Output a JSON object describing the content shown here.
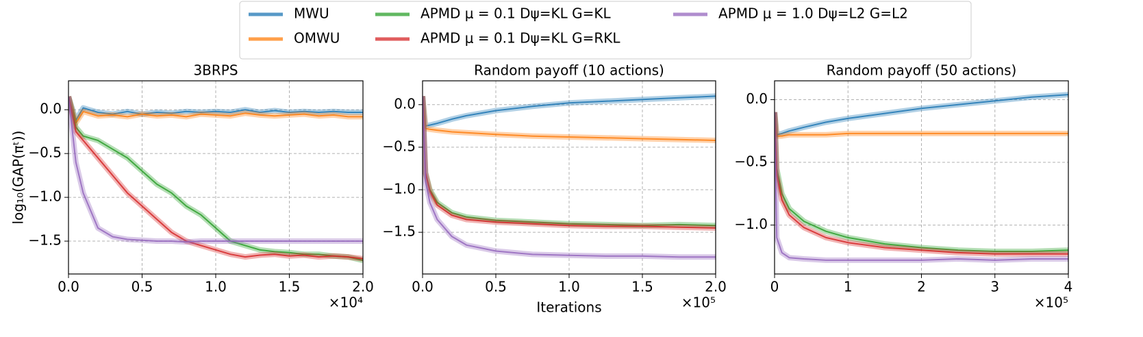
{
  "chart_data": [
    {
      "type": "line",
      "title": "3BRPS",
      "ylabel": "log₁₀(GAP(πᵗ))",
      "legend": "top",
      "grid": true,
      "x": [
        0,
        0.05,
        0.1,
        0.2,
        0.3,
        0.4,
        0.5,
        0.6,
        0.7,
        0.8,
        0.9,
        1.0,
        1.1,
        1.2,
        1.3,
        1.4,
        1.5,
        1.6,
        1.7,
        1.8,
        1.9,
        2.0
      ],
      "x_offset_label": "×10⁴",
      "xlim": [
        0,
        2.0
      ],
      "ylim": [
        -1.875,
        0.33
      ],
      "xticks": [
        {
          "value": 0,
          "label": "0.0"
        },
        {
          "value": 0.5,
          "label": "0.5"
        },
        {
          "value": 1.0,
          "label": "1.0"
        },
        {
          "value": 1.5,
          "label": "1.5"
        },
        {
          "value": 2.0,
          "label": "2.0"
        }
      ],
      "yticks": [
        {
          "value": 0,
          "label": "0.0"
        },
        {
          "value": -0.5,
          "label": "−0.5"
        },
        {
          "value": -1.0,
          "label": "−1.0"
        },
        {
          "value": -1.5,
          "label": "−1.5"
        }
      ],
      "series": [
        {
          "name": "MWU",
          "color": "#1f77b4",
          "values": [
            0.15,
            -0.12,
            0.02,
            -0.03,
            -0.05,
            -0.02,
            -0.05,
            -0.03,
            -0.04,
            -0.02,
            -0.03,
            -0.02,
            -0.03,
            0.0,
            -0.03,
            -0.01,
            -0.03,
            -0.02,
            -0.03,
            -0.02,
            -0.03,
            -0.03
          ]
        },
        {
          "name": "OMWU",
          "color": "#ff7f0e",
          "values": [
            0.15,
            -0.15,
            -0.02,
            -0.07,
            -0.06,
            -0.08,
            -0.05,
            -0.07,
            -0.06,
            -0.08,
            -0.05,
            -0.06,
            -0.07,
            -0.04,
            -0.06,
            -0.07,
            -0.06,
            -0.05,
            -0.07,
            -0.06,
            -0.08,
            -0.08
          ]
        },
        {
          "name": "APMD μ = 0.1 Dψ=KL G=KL",
          "color": "#2ca02c",
          "values": [
            0.15,
            -0.2,
            -0.3,
            -0.35,
            -0.45,
            -0.55,
            -0.7,
            -0.85,
            -0.95,
            -1.1,
            -1.2,
            -1.35,
            -1.5,
            -1.55,
            -1.6,
            -1.62,
            -1.63,
            -1.65,
            -1.65,
            -1.67,
            -1.68,
            -1.72
          ]
        },
        {
          "name": "APMD μ = 0.1 Dψ=KL G=RKL",
          "color": "#d62728",
          "values": [
            0.15,
            -0.25,
            -0.35,
            -0.55,
            -0.75,
            -0.95,
            -1.1,
            -1.25,
            -1.4,
            -1.5,
            -1.55,
            -1.6,
            -1.65,
            -1.68,
            -1.66,
            -1.65,
            -1.67,
            -1.66,
            -1.68,
            -1.67,
            -1.68,
            -1.7
          ]
        },
        {
          "name": "APMD μ = 1.0 Dψ=L2 G=L2",
          "color": "#9467bd",
          "values": [
            0.15,
            -0.6,
            -0.95,
            -1.35,
            -1.45,
            -1.48,
            -1.49,
            -1.5,
            -1.5,
            -1.51,
            -1.5,
            -1.5,
            -1.5,
            -1.5,
            -1.5,
            -1.5,
            -1.5,
            -1.5,
            -1.5,
            -1.5,
            -1.5,
            -1.5
          ]
        }
      ]
    },
    {
      "type": "line",
      "title": "Random payoff (10 actions)",
      "xlabel": "Iterations",
      "grid": true,
      "x": [
        0,
        0.02,
        0.05,
        0.1,
        0.2,
        0.3,
        0.5,
        0.75,
        1.0,
        1.25,
        1.5,
        1.75,
        2.0
      ],
      "x_offset_label": "×10⁵",
      "xlim": [
        0,
        2.0
      ],
      "ylim": [
        -1.99,
        0.28
      ],
      "xticks": [
        {
          "value": 0,
          "label": "0.0"
        },
        {
          "value": 0.5,
          "label": "0.5"
        },
        {
          "value": 1.0,
          "label": "1.0"
        },
        {
          "value": 1.5,
          "label": "1.5"
        },
        {
          "value": 2.0,
          "label": "2.0"
        }
      ],
      "yticks": [
        {
          "value": 0,
          "label": "0.0"
        },
        {
          "value": -0.5,
          "label": "−0.5"
        },
        {
          "value": -1.0,
          "label": "−1.0"
        },
        {
          "value": -1.5,
          "label": "−1.5"
        }
      ],
      "series": [
        {
          "color": "#1f77b4",
          "values": [
            0.1,
            -0.25,
            -0.24,
            -0.22,
            -0.17,
            -0.13,
            -0.07,
            -0.02,
            0.02,
            0.04,
            0.06,
            0.08,
            0.1
          ]
        },
        {
          "color": "#ff7f0e",
          "values": [
            0.1,
            -0.28,
            -0.29,
            -0.3,
            -0.32,
            -0.33,
            -0.35,
            -0.37,
            -0.38,
            -0.39,
            -0.4,
            -0.41,
            -0.42
          ]
        },
        {
          "color": "#2ca02c",
          "values": [
            0.1,
            -0.8,
            -1.0,
            -1.15,
            -1.27,
            -1.32,
            -1.36,
            -1.38,
            -1.4,
            -1.41,
            -1.42,
            -1.41,
            -1.42
          ]
        },
        {
          "color": "#d62728",
          "values": [
            0.1,
            -0.8,
            -1.02,
            -1.18,
            -1.3,
            -1.35,
            -1.38,
            -1.4,
            -1.42,
            -1.43,
            -1.43,
            -1.44,
            -1.45
          ]
        },
        {
          "color": "#9467bd",
          "values": [
            0.1,
            -0.9,
            -1.15,
            -1.35,
            -1.55,
            -1.65,
            -1.72,
            -1.76,
            -1.77,
            -1.78,
            -1.78,
            -1.79,
            -1.79
          ]
        }
      ]
    },
    {
      "type": "line",
      "title": "Random payoff (50 actions)",
      "grid": true,
      "x": [
        0,
        0.03,
        0.1,
        0.2,
        0.4,
        0.7,
        1.0,
        1.5,
        2.0,
        2.5,
        3.0,
        3.5,
        4.0
      ],
      "x_offset_label": "×10⁵",
      "xlim": [
        0,
        4
      ],
      "ylim": [
        -1.39,
        0.15
      ],
      "xticks": [
        0,
        1,
        2,
        3,
        4
      ],
      "yticks": [
        {
          "value": 0,
          "label": "0.0"
        },
        {
          "value": -0.5,
          "label": "−0.5"
        },
        {
          "value": -1.0,
          "label": "−1.0"
        }
      ],
      "series": [
        {
          "color": "#1f77b4",
          "values": [
            -0.1,
            -0.28,
            -0.27,
            -0.25,
            -0.22,
            -0.18,
            -0.15,
            -0.11,
            -0.07,
            -0.04,
            -0.01,
            0.02,
            0.04
          ]
        },
        {
          "color": "#ff7f0e",
          "values": [
            -0.1,
            -0.29,
            -0.29,
            -0.28,
            -0.28,
            -0.28,
            -0.27,
            -0.27,
            -0.27,
            -0.27,
            -0.27,
            -0.27,
            -0.27
          ]
        },
        {
          "color": "#2ca02c",
          "values": [
            -0.1,
            -0.55,
            -0.75,
            -0.87,
            -0.97,
            -1.05,
            -1.1,
            -1.15,
            -1.18,
            -1.2,
            -1.21,
            -1.21,
            -1.2
          ]
        },
        {
          "color": "#d62728",
          "values": [
            -0.1,
            -0.6,
            -0.8,
            -0.92,
            -1.02,
            -1.1,
            -1.14,
            -1.18,
            -1.2,
            -1.22,
            -1.23,
            -1.23,
            -1.23
          ]
        },
        {
          "color": "#9467bd",
          "values": [
            -0.1,
            -1.1,
            -1.22,
            -1.26,
            -1.27,
            -1.28,
            -1.28,
            -1.28,
            -1.28,
            -1.27,
            -1.28,
            -1.27,
            -1.27
          ]
        }
      ]
    }
  ]
}
